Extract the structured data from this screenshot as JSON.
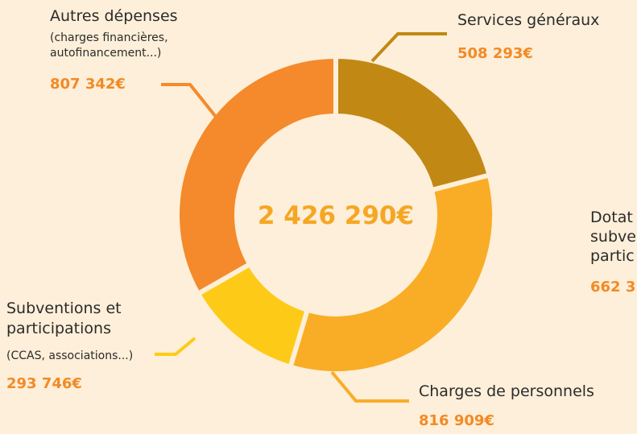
{
  "chart_data": {
    "type": "donut",
    "center_label": "2 426 290€",
    "categories": [
      "Services généraux",
      "Charges de personnels",
      "Subventions et participations",
      "Autres dépenses"
    ],
    "notes": [
      null,
      null,
      "(CCAS, associations...)",
      "(charges financières, autofinancement...)"
    ],
    "values": [
      508293,
      816909,
      293746,
      807342
    ],
    "value_labels": [
      "508 293€",
      "816 909€",
      "293 746€",
      "807 342€"
    ],
    "colors": [
      "#c18914",
      "#f9ad26",
      "#fdcb17",
      "#f48a2b"
    ],
    "cropped_label": {
      "lines": [
        "Dotat",
        "subve",
        "partic"
      ],
      "value": "662 3"
    }
  }
}
